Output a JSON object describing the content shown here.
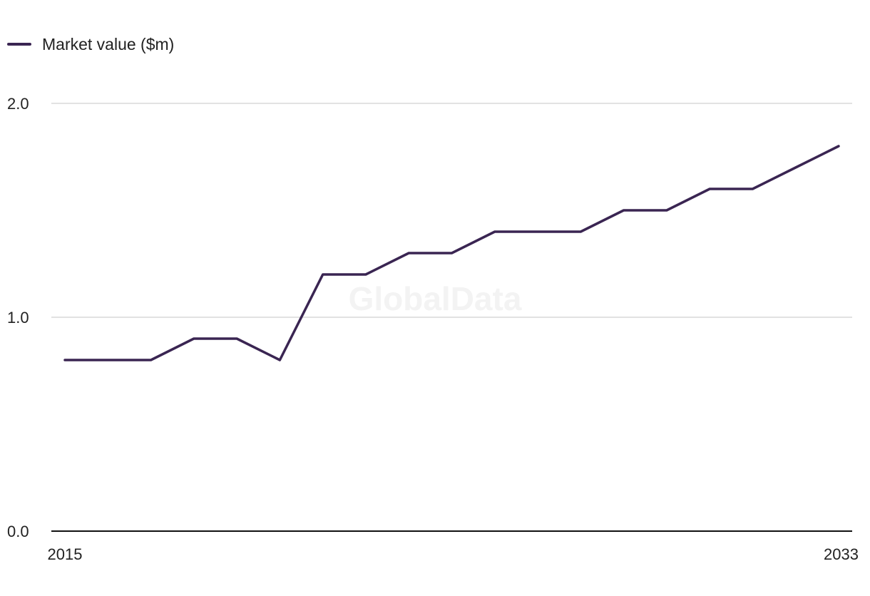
{
  "watermark": "GlobalData",
  "chart_data": {
    "type": "line",
    "x": [
      2015,
      2016,
      2017,
      2018,
      2019,
      2020,
      2021,
      2022,
      2023,
      2024,
      2025,
      2026,
      2027,
      2028,
      2029,
      2030,
      2031,
      2032,
      2033
    ],
    "series": [
      {
        "name": "Market value ($m)",
        "color": "#3a2552",
        "values": [
          0.8,
          0.8,
          0.8,
          0.9,
          0.9,
          0.8,
          1.2,
          1.2,
          1.3,
          1.3,
          1.4,
          1.4,
          1.4,
          1.5,
          1.5,
          1.6,
          1.6,
          1.7,
          1.8
        ]
      }
    ],
    "x_tick_labels": [
      "2015",
      "2033"
    ],
    "y_ticks": [
      0.0,
      1.0,
      2.0
    ],
    "y_tick_labels": [
      "0.0",
      "1.0",
      "2.0"
    ],
    "ylim": [
      0,
      2.0
    ],
    "xlim": [
      2015,
      2033
    ],
    "grid": true,
    "legend_position": "top-left",
    "xlabel": "",
    "ylabel": "",
    "title": ""
  }
}
